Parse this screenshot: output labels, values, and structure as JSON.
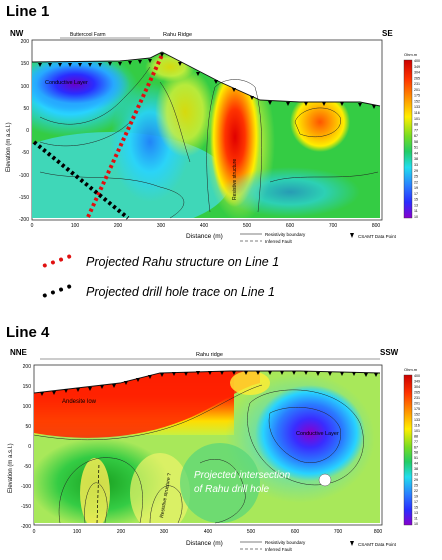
{
  "line1": {
    "title": "Line 1",
    "nw": "NW",
    "se": "SE",
    "top_labels": [
      "Buttercool Farm",
      "Rahu Ridge"
    ],
    "ylabel": "Elevation (m a.s.l.)",
    "xlabel": "Distance (m)",
    "y_ticks": [
      "200",
      "150",
      "100",
      "50",
      "0",
      "-50",
      "-100",
      "-150",
      "-200"
    ],
    "x_ticks": [
      "0",
      "100",
      "200",
      "300",
      "400",
      "500",
      "600",
      "700",
      "800"
    ],
    "annotations": [
      "Conductive Layer",
      "Resistive structure"
    ],
    "legend_boundary": "Resistivity boundary",
    "legend_fault": "Inferred Fault",
    "legend_point": "CSAMT Data Point",
    "colorbar_unit": "Ohm.m",
    "colorbar_values": [
      "400",
      "349",
      "304",
      "265",
      "231",
      "201",
      "175",
      "152",
      "133",
      "116",
      "101",
      "88",
      "77",
      "67",
      "58",
      "51",
      "44",
      "38",
      "33",
      "29",
      "25",
      "22",
      "19",
      "17",
      "15",
      "13",
      "11",
      "10"
    ]
  },
  "legend": {
    "rahu": "Projected Rahu structure on Line 1",
    "drill": "Projected drill hole trace on Line 1"
  },
  "line4": {
    "title": "Line 4",
    "nne": "NNE",
    "ssw": "SSW",
    "top_label": "Rahu ridge",
    "ylabel": "Elevation (m a.s.l.)",
    "xlabel": "Distance (m)",
    "y_ticks": [
      "200",
      "150",
      "100",
      "50",
      "0",
      "-50",
      "-100",
      "-150",
      "-200"
    ],
    "x_ticks": [
      "0",
      "100",
      "200",
      "300",
      "400",
      "500",
      "600",
      "700",
      "800"
    ],
    "annotations": [
      "Andesite low",
      "Conductive Layer",
      "Resistive structure ?"
    ],
    "intersection": [
      "Projected intersection",
      "of Rahu drill hole"
    ],
    "legend_boundary": "Resistivity boundary",
    "legend_fault": "Inferred Fault",
    "legend_point": "CSAMT Data Point",
    "colorbar_unit": "Ohm.m",
    "colorbar_values": [
      "400",
      "349",
      "304",
      "265",
      "231",
      "201",
      "175",
      "152",
      "133",
      "116",
      "101",
      "88",
      "77",
      "67",
      "58",
      "51",
      "44",
      "38",
      "33",
      "29",
      "25",
      "22",
      "19",
      "17",
      "15",
      "13",
      "11",
      "10"
    ]
  },
  "colors": {
    "high": "#ff0000",
    "mid": "#ffff00",
    "green": "#22cc33",
    "low": "#1a3aff",
    "lowest": "#7a00cc",
    "rahu_dots": "#e01010",
    "drill_dots": "#000000"
  }
}
